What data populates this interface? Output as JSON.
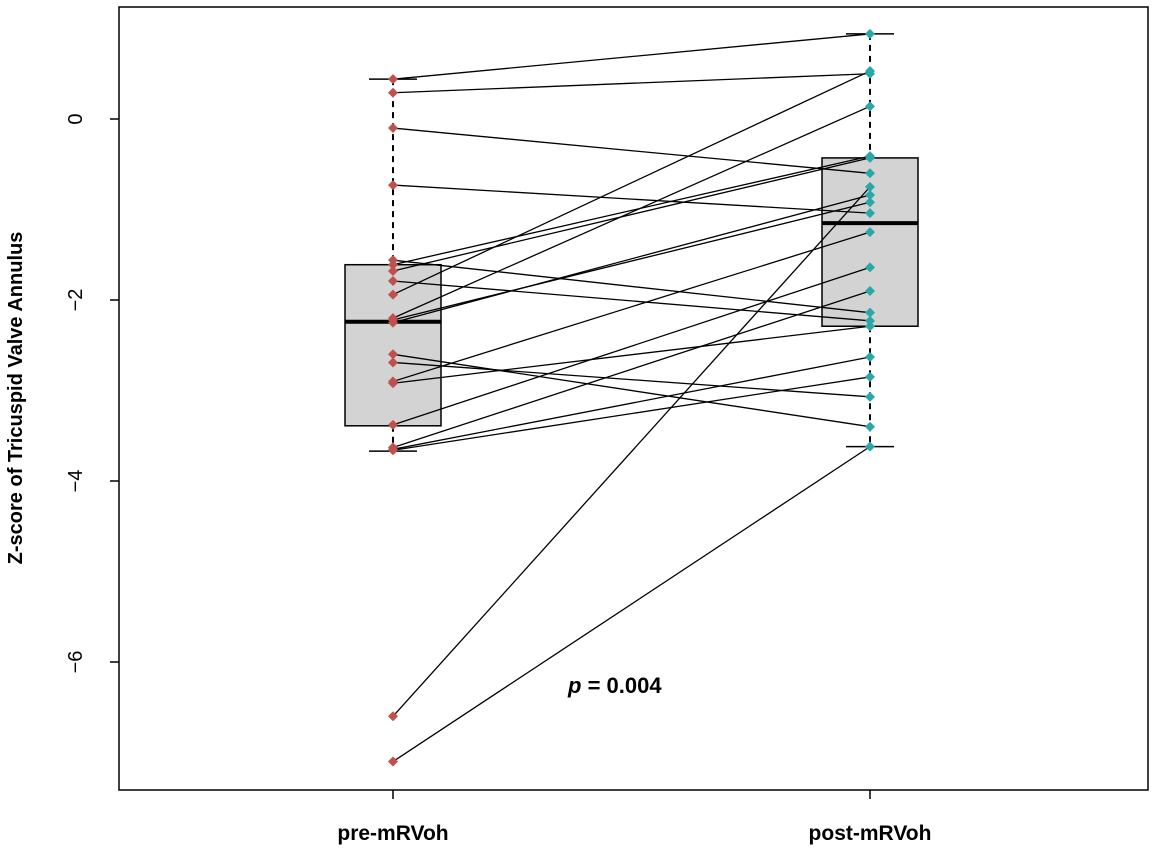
{
  "chart_data": {
    "type": "box",
    "ylabel": "Z-score of Tricuspid Valve Annulus",
    "xlabel": "",
    "categories": [
      "pre-mRVoh",
      "post-mRVoh"
    ],
    "ylim": [
      -7.25,
      1.25
    ],
    "yticks": [
      0,
      -2,
      -4,
      -6
    ],
    "ytick_labels": [
      "0",
      "−2",
      "−4",
      "−6"
    ],
    "grid": false,
    "annotation": {
      "italic": "p",
      "text": " = 0.004"
    },
    "colors": {
      "pre": "#c0504d",
      "post": "#2aa8a8",
      "box_fill": "#d3d3d3"
    },
    "boxes": [
      {
        "category": "pre-mRVoh",
        "whisker_high": 0.44,
        "q3": -1.61,
        "median": -2.24,
        "q1": -3.39,
        "whisker_low": -3.67
      },
      {
        "category": "post-mRVoh",
        "whisker_high": 0.94,
        "q3": -0.43,
        "median": -1.15,
        "q1": -2.29,
        "whisker_low": -3.62
      }
    ],
    "pairs": [
      [
        0.44,
        0.94
      ],
      [
        0.29,
        0.5
      ],
      [
        -0.1,
        -0.6
      ],
      [
        -0.73,
        -1.04
      ],
      [
        -1.56,
        -2.14
      ],
      [
        -1.61,
        -0.41
      ],
      [
        -1.68,
        -0.43
      ],
      [
        -1.79,
        -2.23
      ],
      [
        -1.94,
        0.53
      ],
      [
        -2.2,
        0.14
      ],
      [
        -2.22,
        -0.92
      ],
      [
        -2.25,
        -0.84
      ],
      [
        -2.6,
        -3.4
      ],
      [
        -2.69,
        -3.07
      ],
      [
        -2.9,
        -1.25
      ],
      [
        -2.92,
        -2.29
      ],
      [
        -3.38,
        -1.64
      ],
      [
        -3.63,
        -1.9
      ],
      [
        -3.65,
        -2.63
      ],
      [
        -3.66,
        -2.85
      ],
      [
        -6.6,
        -0.75
      ],
      [
        -7.1,
        -3.62
      ]
    ]
  }
}
